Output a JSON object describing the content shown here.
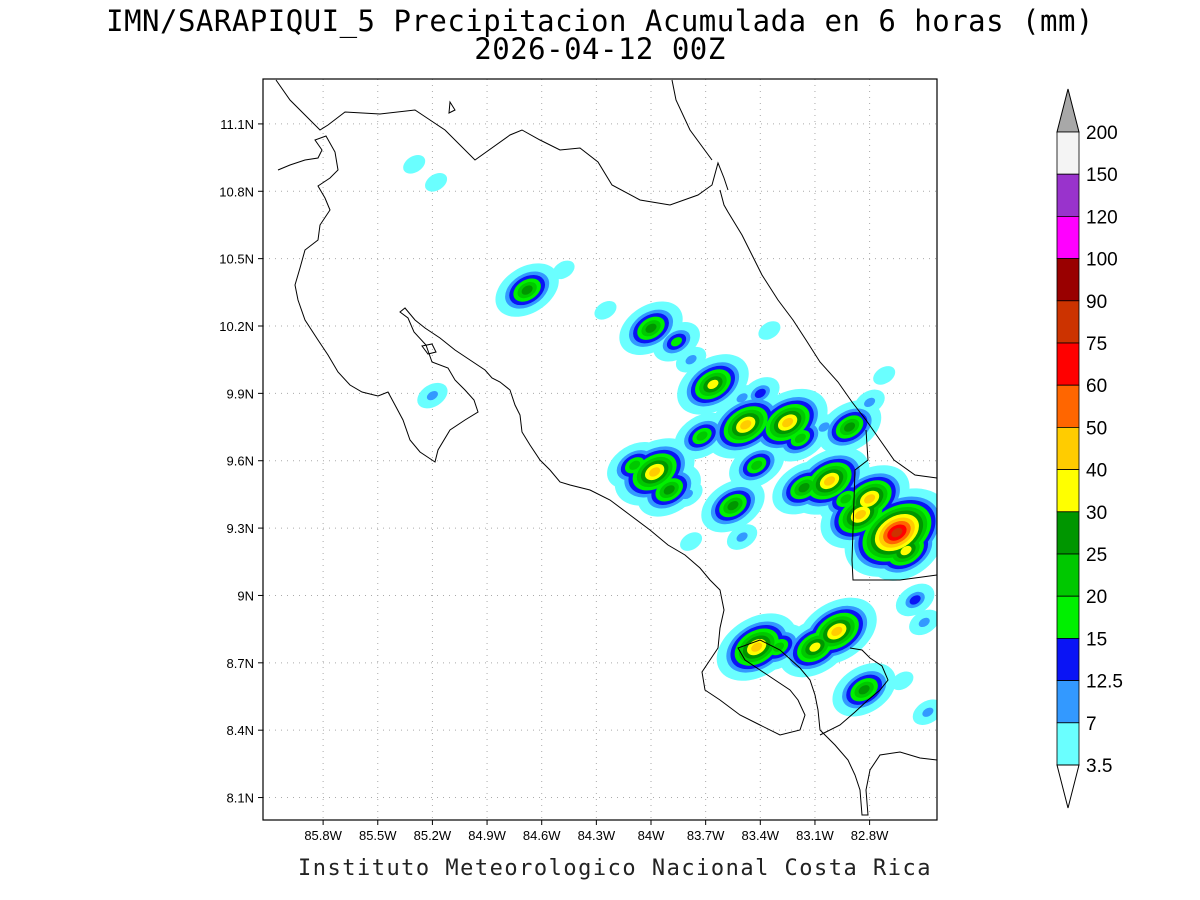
{
  "title_line1": "IMN/SARAPIQUI_5 Precipitacion Acumulada en 6 horas (mm)",
  "title_line2": "2026-04-12 00Z",
  "footer": "Instituto Meteorologico Nacional Costa Rica",
  "map": {
    "lon_range": [
      -86.13,
      -82.43
    ],
    "lat_range": [
      8.0,
      11.3
    ],
    "lon_ticks": [
      {
        "value": -85.8,
        "label": "85.8W"
      },
      {
        "value": -85.5,
        "label": "85.5W"
      },
      {
        "value": -85.2,
        "label": "85.2W"
      },
      {
        "value": -84.9,
        "label": "84.9W"
      },
      {
        "value": -84.6,
        "label": "84.6W"
      },
      {
        "value": -84.3,
        "label": "84.3W"
      },
      {
        "value": -84.0,
        "label": "84W"
      },
      {
        "value": -83.7,
        "label": "83.7W"
      },
      {
        "value": -83.4,
        "label": "83.4W"
      },
      {
        "value": -83.1,
        "label": "83.1W"
      },
      {
        "value": -82.8,
        "label": "82.8W"
      }
    ],
    "lat_ticks": [
      {
        "value": 11.1,
        "label": "11.1N"
      },
      {
        "value": 10.8,
        "label": "10.8N"
      },
      {
        "value": 10.5,
        "label": "10.5N"
      },
      {
        "value": 10.2,
        "label": "10.2N"
      },
      {
        "value": 9.9,
        "label": "9.9N"
      },
      {
        "value": 9.6,
        "label": "9.6N"
      },
      {
        "value": 9.3,
        "label": "9.3N"
      },
      {
        "value": 9.0,
        "label": "9N"
      },
      {
        "value": 8.7,
        "label": "8.7N"
      },
      {
        "value": 8.4,
        "label": "8.4N"
      },
      {
        "value": 8.1,
        "label": "8.1N"
      }
    ],
    "grid": "dotted",
    "precip_cells": [
      {
        "lon": -85.3,
        "lat": 10.92,
        "mm": 3.5
      },
      {
        "lon": -85.18,
        "lat": 10.84,
        "mm": 3.5
      },
      {
        "lon": -85.2,
        "lat": 9.89,
        "mm": 7
      },
      {
        "lon": -84.68,
        "lat": 10.36,
        "mm": 25
      },
      {
        "lon": -84.48,
        "lat": 10.45,
        "mm": 3.5
      },
      {
        "lon": -84.25,
        "lat": 10.27,
        "mm": 3.5
      },
      {
        "lon": -84.0,
        "lat": 10.19,
        "mm": 25
      },
      {
        "lon": -83.86,
        "lat": 10.13,
        "mm": 15
      },
      {
        "lon": -83.78,
        "lat": 10.05,
        "mm": 7
      },
      {
        "lon": -83.66,
        "lat": 9.94,
        "mm": 30
      },
      {
        "lon": -83.5,
        "lat": 9.88,
        "mm": 7
      },
      {
        "lon": -83.35,
        "lat": 10.18,
        "mm": 3.5
      },
      {
        "lon": -83.4,
        "lat": 9.9,
        "mm": 12.5
      },
      {
        "lon": -83.72,
        "lat": 9.71,
        "mm": 20
      },
      {
        "lon": -83.48,
        "lat": 9.76,
        "mm": 40
      },
      {
        "lon": -83.25,
        "lat": 9.77,
        "mm": 40
      },
      {
        "lon": -83.18,
        "lat": 9.7,
        "mm": 20
      },
      {
        "lon": -83.05,
        "lat": 9.75,
        "mm": 7
      },
      {
        "lon": -82.91,
        "lat": 9.75,
        "mm": 25
      },
      {
        "lon": -82.8,
        "lat": 9.86,
        "mm": 7
      },
      {
        "lon": -82.72,
        "lat": 9.98,
        "mm": 3.5
      },
      {
        "lon": -83.42,
        "lat": 9.58,
        "mm": 20
      },
      {
        "lon": -84.09,
        "lat": 9.58,
        "mm": 20
      },
      {
        "lon": -83.98,
        "lat": 9.55,
        "mm": 40
      },
      {
        "lon": -83.9,
        "lat": 9.47,
        "mm": 25
      },
      {
        "lon": -83.8,
        "lat": 9.45,
        "mm": 7
      },
      {
        "lon": -83.55,
        "lat": 9.4,
        "mm": 25
      },
      {
        "lon": -83.16,
        "lat": 9.48,
        "mm": 25
      },
      {
        "lon": -83.02,
        "lat": 9.51,
        "mm": 40
      },
      {
        "lon": -82.93,
        "lat": 9.43,
        "mm": 20
      },
      {
        "lon": -82.8,
        "lat": 9.43,
        "mm": 40
      },
      {
        "lon": -82.85,
        "lat": 9.36,
        "mm": 40
      },
      {
        "lon": -82.65,
        "lat": 9.28,
        "mm": 75
      },
      {
        "lon": -82.6,
        "lat": 9.2,
        "mm": 30
      },
      {
        "lon": -82.78,
        "lat": 9.22,
        "mm": 12.5
      },
      {
        "lon": -83.5,
        "lat": 9.26,
        "mm": 7
      },
      {
        "lon": -83.78,
        "lat": 9.24,
        "mm": 3.5
      },
      {
        "lon": -82.55,
        "lat": 8.98,
        "mm": 12.5
      },
      {
        "lon": -82.5,
        "lat": 8.88,
        "mm": 7
      },
      {
        "lon": -83.42,
        "lat": 8.77,
        "mm": 40
      },
      {
        "lon": -83.3,
        "lat": 8.77,
        "mm": 20
      },
      {
        "lon": -83.1,
        "lat": 8.77,
        "mm": 30
      },
      {
        "lon": -82.98,
        "lat": 8.84,
        "mm": 40
      },
      {
        "lon": -83.52,
        "lat": 8.72,
        "mm": 3.5
      },
      {
        "lon": -82.83,
        "lat": 8.58,
        "mm": 25
      },
      {
        "lon": -82.62,
        "lat": 8.62,
        "mm": 3.5
      },
      {
        "lon": -82.48,
        "lat": 8.48,
        "mm": 7
      }
    ]
  },
  "colorbar": {
    "levels": [
      "3.5",
      "7",
      "12.5",
      "15",
      "20",
      "25",
      "30",
      "40",
      "50",
      "60",
      "75",
      "90",
      "100",
      "120",
      "150",
      "200"
    ],
    "colors": [
      "#6affff",
      "#3399ff",
      "#0a14f5",
      "#00f000",
      "#00c800",
      "#009600",
      "#ffff00",
      "#ffcc00",
      "#ff6600",
      "#ff0000",
      "#cc3300",
      "#990000",
      "#ff00ff",
      "#9933cc",
      "#f4f4f4"
    ],
    "top_color": "#a8a8a8",
    "bottom_color": "#ffffff"
  }
}
